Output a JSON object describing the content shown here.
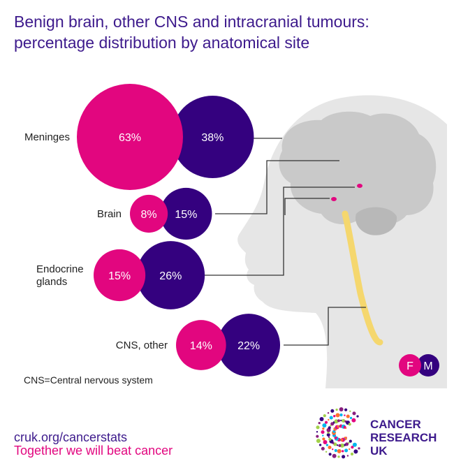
{
  "title": {
    "line1": "Benign brain, other CNS and intracranial tumours:",
    "line2": "percentage distribution by anatomical site"
  },
  "colors": {
    "female": "#e2067f",
    "male": "#34017f",
    "head": "#e6e6e6",
    "brain": "#c9c9c9",
    "spinal": "#f5d76e",
    "line": "#333333"
  },
  "legend": {
    "female": "F",
    "male": "M"
  },
  "note": "CNS=Central nervous system",
  "chart_data": {
    "type": "bubble",
    "title": "Benign brain, other CNS and intracranial tumours: percentage distribution by anatomical site",
    "categories": [
      "Meninges",
      "Brain",
      "Endocrine glands",
      "CNS, other"
    ],
    "category_lines": [
      [
        "Meninges"
      ],
      [
        "Brain"
      ],
      [
        "Endocrine",
        "glands"
      ],
      [
        "CNS, other"
      ]
    ],
    "series": [
      {
        "name": "F",
        "values": [
          63,
          8,
          15,
          14
        ],
        "labels": [
          "63%",
          "8%",
          "15%",
          "14%"
        ]
      },
      {
        "name": "M",
        "values": [
          38,
          15,
          26,
          22
        ],
        "labels": [
          "38%",
          "15%",
          "26%",
          "22%"
        ]
      }
    ]
  },
  "footer": {
    "url": "cruk.org/cancerstats",
    "tagline": "Together we will beat cancer"
  },
  "brand": {
    "line1": "CANCER",
    "line2": "RESEARCH",
    "line3": "UK"
  }
}
